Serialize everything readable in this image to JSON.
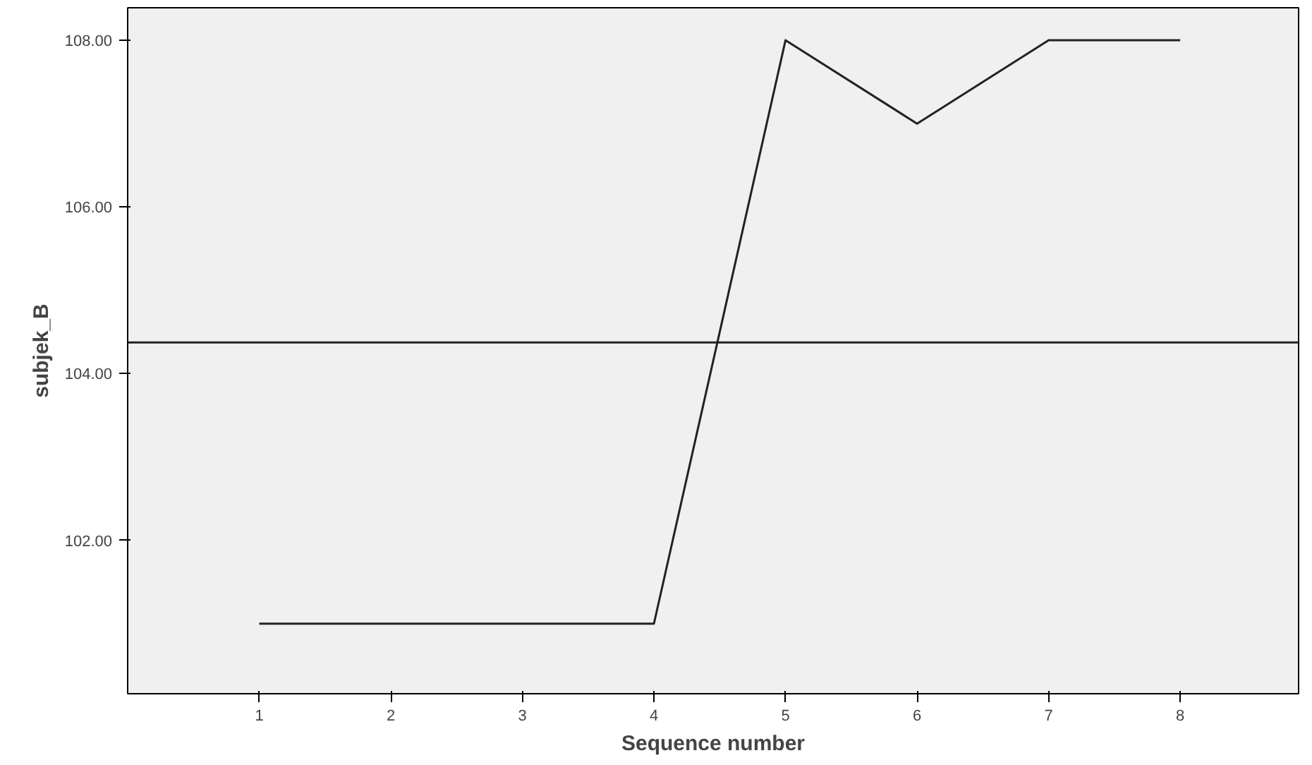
{
  "chart_data": {
    "type": "line",
    "xlabel": "Sequence number",
    "ylabel": "subjek_B",
    "x": [
      1,
      2,
      3,
      4,
      5,
      6,
      7,
      8
    ],
    "series": [
      {
        "color": "#222222",
        "values": [
          101,
          101,
          101,
          101,
          108,
          107,
          108,
          108
        ]
      }
    ],
    "xlim": [
      0,
      8.9
    ],
    "xticks": [
      1,
      2,
      3,
      4,
      5,
      6,
      7,
      8
    ],
    "ylim": [
      100.16,
      108.39
    ],
    "yticks": [
      {
        "value": 102,
        "label": "102.00"
      },
      {
        "value": 104,
        "label": "104.00"
      },
      {
        "value": 106,
        "label": "106.00"
      },
      {
        "value": 108,
        "label": "108.00"
      }
    ],
    "ref_lines": [
      {
        "axis": "y",
        "value": 104.375,
        "color": "#222222"
      }
    ],
    "grid": false,
    "marker": "none",
    "line_style": "solid"
  }
}
